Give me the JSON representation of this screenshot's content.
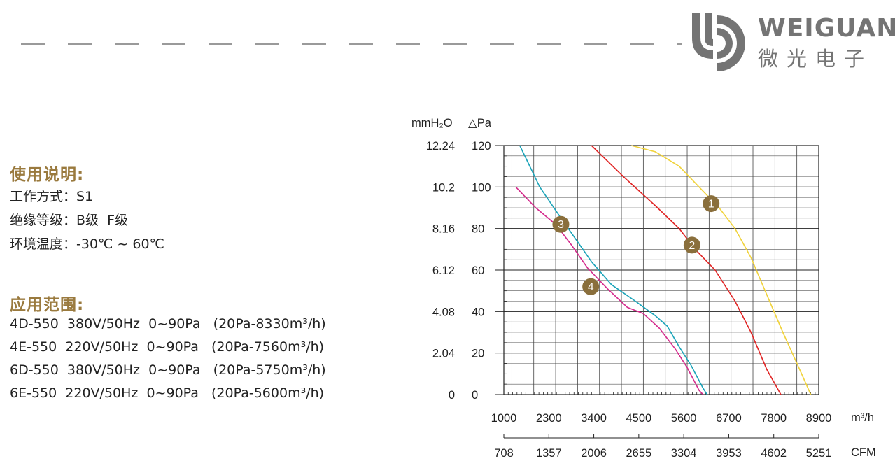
{
  "header": {
    "logo": {
      "brand_en": "WEIGUANG",
      "brand_cn": "微光电子",
      "color": "#747474"
    }
  },
  "usage": {
    "title": "使用说明:",
    "lines": [
      "工作方式：S1",
      "绝缘等级：B级  F级",
      "环境温度：-30℃ ~ 60℃"
    ]
  },
  "application": {
    "title": "应用范围:",
    "lines": [
      "4D-550  380V/50Hz  0~90Pa   (20Pa-8330m³/h)",
      "4E-550  220V/50Hz  0~90Pa   (20Pa-7560m³/h)",
      "6D-550  380V/50Hz  0~90Pa   (20Pa-5750m³/h)",
      "6E-550  220V/50Hz  0~90Pa   (20Pa-5600m³/h)"
    ]
  },
  "colors": {
    "title_gold": "#9a7a3e",
    "marker": "#8a6f3c"
  },
  "chart_data": {
    "type": "line",
    "left_unit": "mmH₂O",
    "right_unit": "△Pa",
    "x_unit": "m³/h",
    "x2_unit": "CFM",
    "x_ticks": [
      1000,
      2300,
      3400,
      4500,
      5600,
      6700,
      7800,
      8900
    ],
    "x2_ticks": [
      708,
      1357,
      2006,
      2655,
      3304,
      3953,
      4602,
      5251
    ],
    "y_ticks_pa": [
      0,
      20,
      40,
      60,
      80,
      100,
      120
    ],
    "y_ticks_mmh2o": [
      "0",
      "2.04",
      "4.08",
      "6.12",
      "8.16",
      "10.2",
      "12.24"
    ],
    "xlim": [
      1000,
      8900
    ],
    "ylim": [
      0,
      120
    ],
    "grid": true,
    "series": [
      {
        "name": "1",
        "color": "#f0d23a",
        "points": [
          [
            4200,
            120
          ],
          [
            4800,
            117
          ],
          [
            5400,
            110
          ],
          [
            6000,
            98
          ],
          [
            6400,
            90
          ],
          [
            6800,
            80
          ],
          [
            7200,
            66
          ],
          [
            7600,
            48
          ],
          [
            8000,
            30
          ],
          [
            8400,
            13
          ],
          [
            8700,
            0
          ]
        ]
      },
      {
        "name": "2",
        "color": "#e02424",
        "points": [
          [
            3200,
            120
          ],
          [
            4000,
            105
          ],
          [
            4800,
            91
          ],
          [
            5400,
            80
          ],
          [
            5800,
            70
          ],
          [
            6300,
            60
          ],
          [
            6800,
            45
          ],
          [
            7200,
            30
          ],
          [
            7600,
            12
          ],
          [
            7950,
            0
          ]
        ]
      },
      {
        "name": "3",
        "color": "#1aa3b8",
        "points": [
          [
            1400,
            120
          ],
          [
            1900,
            100
          ],
          [
            2400,
            86
          ],
          [
            2800,
            75
          ],
          [
            3200,
            64
          ],
          [
            3700,
            53
          ],
          [
            4300,
            45
          ],
          [
            4800,
            38
          ],
          [
            5100,
            33
          ],
          [
            5400,
            23
          ],
          [
            5700,
            14
          ],
          [
            6000,
            3
          ],
          [
            6100,
            0
          ]
        ]
      },
      {
        "name": "4",
        "color": "#d42a8c",
        "points": [
          [
            1300,
            100
          ],
          [
            1800,
            90
          ],
          [
            2300,
            82
          ],
          [
            2700,
            72
          ],
          [
            3100,
            61
          ],
          [
            3600,
            51
          ],
          [
            4100,
            42
          ],
          [
            4500,
            39
          ],
          [
            4900,
            32
          ],
          [
            5300,
            22
          ],
          [
            5600,
            13
          ],
          [
            5900,
            2
          ],
          [
            6000,
            0
          ]
        ]
      }
    ],
    "markers": [
      {
        "label": "1",
        "x": 6200,
        "y": 92
      },
      {
        "label": "2",
        "x": 5720,
        "y": 72
      },
      {
        "label": "3",
        "x": 2430,
        "y": 82
      },
      {
        "label": "4",
        "x": 3180,
        "y": 52
      }
    ]
  }
}
